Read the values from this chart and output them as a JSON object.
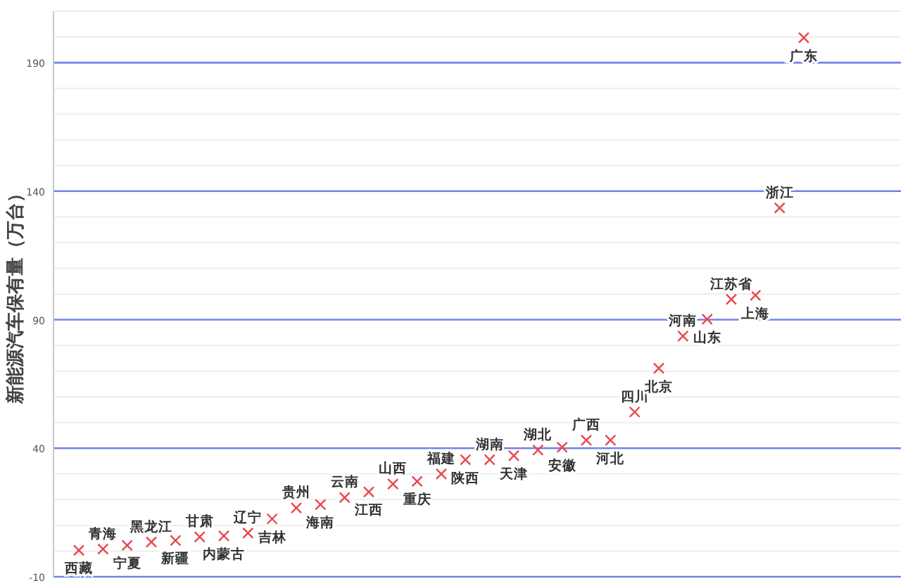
{
  "chart_data": {
    "type": "scatter",
    "ylabel": "新能源汽车保有量（万台）",
    "categories": [
      "西藏",
      "青海",
      "宁夏",
      "黑龙江",
      "新疆",
      "甘肃",
      "内蒙古",
      "辽宁",
      "吉林",
      "贵州",
      "海南",
      "云南",
      "江西",
      "山西",
      "重庆",
      "福建",
      "陕西",
      "湖南",
      "天津",
      "湖北",
      "安徽",
      "广西",
      "河北",
      "四川",
      "北京",
      "河南",
      "山东",
      "江苏省",
      "上海",
      "浙江",
      "广东"
    ],
    "values": [
      0.3,
      0.8,
      2.2,
      3.5,
      4.1,
      5.5,
      5.9,
      7.0,
      12.5,
      16.8,
      18.1,
      20.8,
      23.0,
      26.1,
      27.1,
      30.0,
      35.5,
      35.5,
      37.1,
      39.3,
      40.4,
      43.1,
      43.1,
      54.1,
      71.1,
      83.6,
      90.2,
      97.9,
      99.5,
      133.5,
      199.7
    ],
    "color": "#e8474f",
    "marker": "cross",
    "ylim": [
      -10,
      210
    ],
    "yticks": [
      -10,
      {
        "value": 0,
        "label": null
      },
      {
        "value": 10,
        "label": null
      },
      {
        "value": 20,
        "label": null
      },
      {
        "value": 30,
        "label": null
      },
      40,
      {
        "value": 50,
        "label": null
      },
      {
        "value": 60,
        "label": null
      },
      {
        "value": 70,
        "label": null
      },
      {
        "value": 80,
        "label": null
      },
      90,
      {
        "value": 100,
        "label": null
      },
      {
        "value": 110,
        "label": null
      },
      {
        "value": 120,
        "label": null
      },
      {
        "value": 130,
        "label": null
      },
      140,
      {
        "value": 150,
        "label": null
      },
      {
        "value": 160,
        "label": null
      },
      {
        "value": 170,
        "label": null
      },
      {
        "value": 180,
        "label": null
      },
      190,
      {
        "value": 200,
        "label": null
      },
      {
        "value": 210,
        "label": null
      }
    ],
    "grid": "y",
    "tick_labels": "y"
  }
}
